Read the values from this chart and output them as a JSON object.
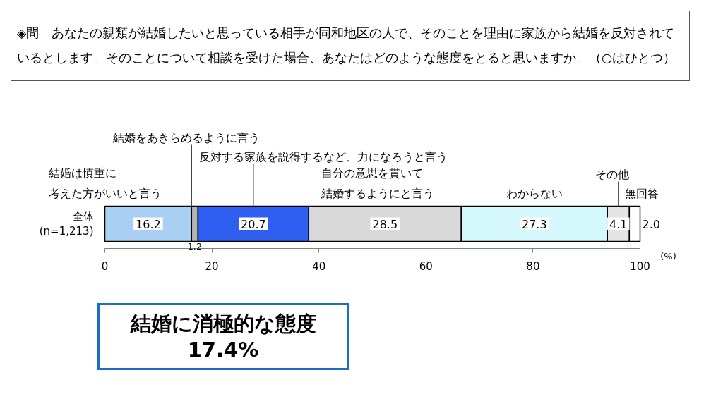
{
  "chart_data": {
    "type": "bar",
    "orientation": "horizontal",
    "stacked": true,
    "title": "◈問　あなたの親類が結婚したいと思っている相手が同和地区の人で、そのことを理由に家族から結婚を反対されているとします。そのことについて相談を受けた場合、あなたはどのような態度をとると思いますか。（○はひとつ）",
    "xlabel": "(%)",
    "categories": [
      "全体\n(n=1,213)"
    ],
    "xlim": [
      0,
      100
    ],
    "xticks": [
      0,
      20,
      40,
      60,
      80,
      100
    ],
    "grid": false,
    "series": [
      {
        "name": "結婚は慎重に考えた方がいいと言う",
        "color": "#a9cff5",
        "values": [
          16.2
        ],
        "value_labels": [
          "16.2"
        ]
      },
      {
        "name": "結婚をあきらめるように言う",
        "color": "#b4b4b4",
        "values": [
          1.2
        ],
        "value_labels": [
          "1.2"
        ]
      },
      {
        "name": "反対する家族を説得するなど、力になろうと言う",
        "color": "#2f5ff0",
        "values": [
          20.7
        ],
        "value_labels": [
          "20.7"
        ]
      },
      {
        "name": "自分の意思を貫いて結婚するようにと言う",
        "color": "#d9d9d9",
        "values": [
          28.5
        ],
        "value_labels": [
          "28.5"
        ]
      },
      {
        "name": "わからない",
        "color": "#d4f8fc",
        "values": [
          27.3
        ],
        "value_labels": [
          "27.3"
        ]
      },
      {
        "name": "その他",
        "color": "#e4e4e4",
        "values": [
          4.1
        ],
        "value_labels": [
          "4.1"
        ]
      },
      {
        "name": "無回答",
        "color": "#ffffff",
        "values": [
          2.0
        ],
        "value_labels": [
          "2.0"
        ]
      }
    ],
    "annotations": [
      "結婚に消極的な態度\n17.4%"
    ]
  }
}
